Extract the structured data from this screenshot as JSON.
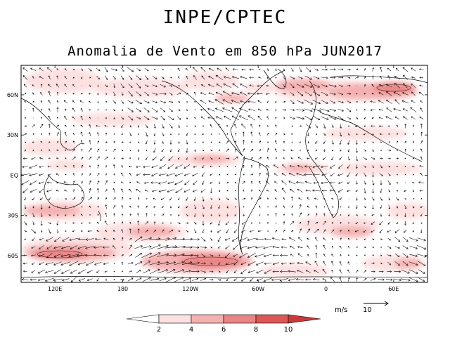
{
  "header": {
    "title": "INPE/CPTEC",
    "subtitle": "Anomalia de Vento em 850 hPa JUN2017"
  },
  "map": {
    "variable": "wind anomaly 850 hPa",
    "lat_labels": [
      "60N",
      "30N",
      "EQ",
      "30S",
      "60S"
    ],
    "lat_values": [
      60,
      30,
      0,
      -30,
      -60
    ],
    "lon_labels": [
      "120E",
      "180",
      "120W",
      "60W",
      "0",
      "60E"
    ],
    "lon_values": [
      120,
      180,
      240,
      300,
      360,
      420
    ],
    "lon_range": [
      90,
      450
    ],
    "lat_range": [
      -80,
      82
    ]
  },
  "reference_vector": {
    "unit": "m/s",
    "value": "10"
  },
  "colorbar": {
    "labels": [
      "2",
      "4",
      "6",
      "8",
      "10"
    ],
    "colors": [
      "#ffffff",
      "#fde0e0",
      "#f4b1b1",
      "#ea8585",
      "#dc5858",
      "#c83a3a"
    ]
  },
  "colors": {
    "shade_light": "#fde0e0",
    "shade_mid": "#f4b1b1",
    "shade_strong": "#ea8585",
    "shade_max": "#dc5858",
    "arrow": "#000000"
  }
}
